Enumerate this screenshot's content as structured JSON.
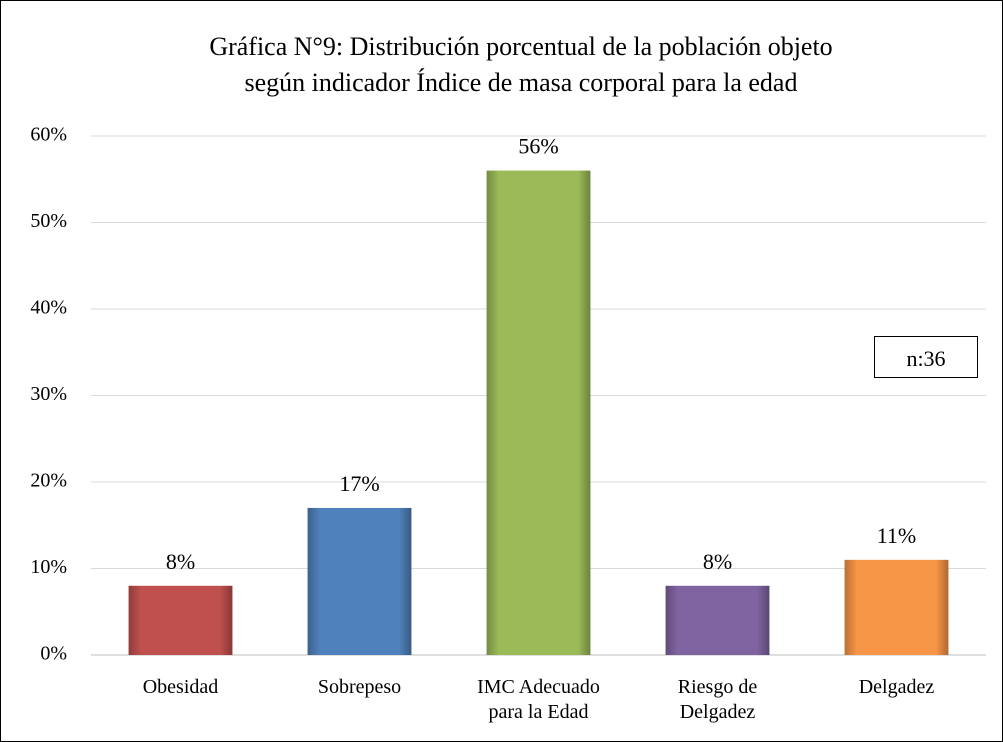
{
  "chart_data": {
    "type": "bar",
    "title": [
      "Gráfica N°9: Distribución porcentual de la población objeto",
      "según indicador Índice de masa corporal  para la edad"
    ],
    "categories": [
      "Obesidad",
      "Sobrepeso",
      "IMC Adecuado para la Edad",
      "Riesgo de Delgadez",
      "Delgadez"
    ],
    "values": [
      8,
      17,
      56,
      8,
      11
    ],
    "value_labels": [
      "8%",
      "17%",
      "56%",
      "8%",
      "11%"
    ],
    "colors": [
      "#c0504d",
      "#4f81bd",
      "#9bbb59",
      "#8064a2",
      "#f79646"
    ],
    "ylim": [
      0,
      60
    ],
    "yticks": [
      {
        "value": 0,
        "label": "0%"
      },
      {
        "value": 10,
        "label": "10%"
      },
      {
        "value": 20,
        "label": "20%"
      },
      {
        "value": 30,
        "label": "30%"
      },
      {
        "value": 40,
        "label": "40%"
      },
      {
        "value": 50,
        "label": "50%"
      },
      {
        "value": 60,
        "label": "60%"
      }
    ],
    "grid": true,
    "annotation": "n:36"
  }
}
